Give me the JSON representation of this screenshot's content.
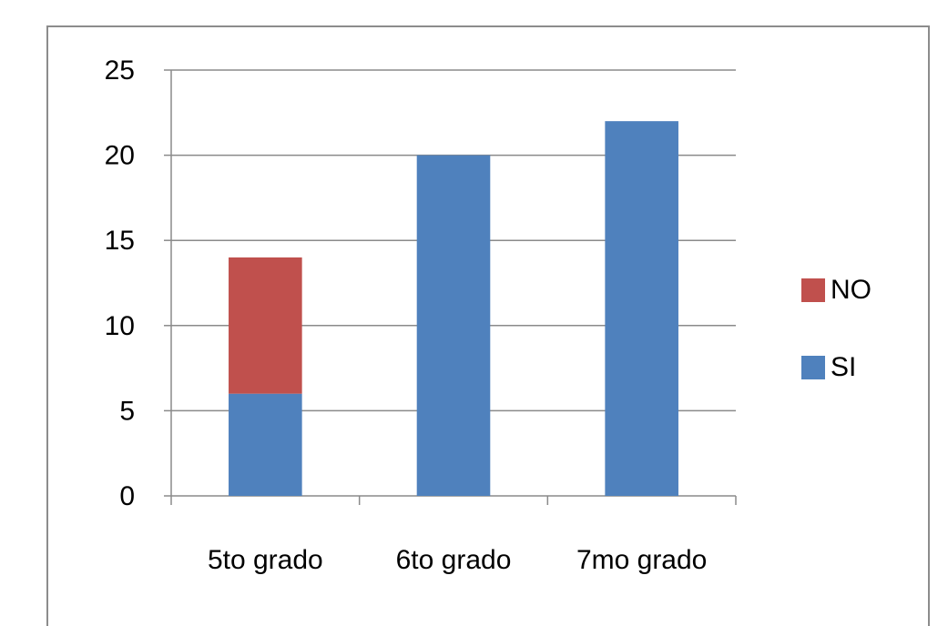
{
  "chart_data": {
    "type": "bar",
    "stacked": true,
    "categories": [
      "5to grado",
      "6to grado",
      "7mo grado"
    ],
    "series": [
      {
        "name": "SI",
        "values": [
          6,
          20,
          22
        ],
        "color": "#4f81bd"
      },
      {
        "name": "NO",
        "values": [
          8,
          0,
          0
        ],
        "color": "#c0504d"
      }
    ],
    "ylim": [
      0,
      25
    ],
    "yticks": [
      "0",
      "5",
      "10",
      "15",
      "20",
      "25"
    ],
    "grid": true,
    "legend": {
      "position": "right",
      "order": [
        "NO",
        "SI"
      ]
    },
    "title": "",
    "xlabel": "",
    "ylabel": ""
  }
}
